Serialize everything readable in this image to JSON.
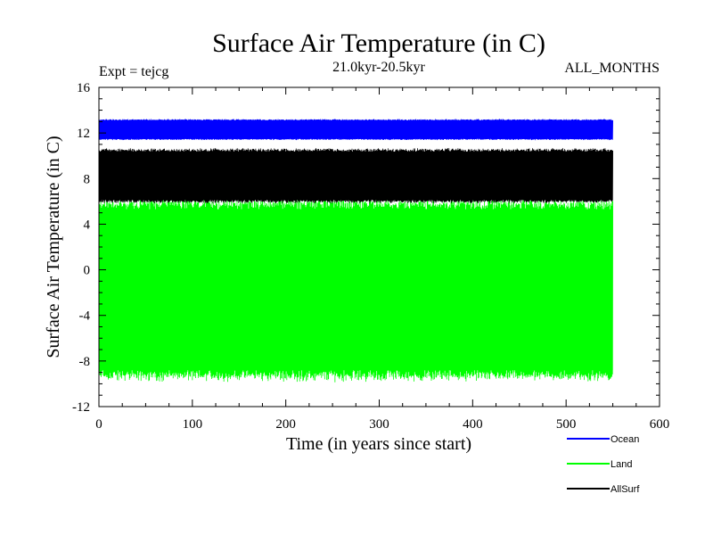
{
  "chart_data": {
    "type": "line",
    "title": "Surface Air Temperature (in C)",
    "subtitle": "21.0kyr-20.5kyr",
    "experiment_label": "Expt = tejcg",
    "months_label": "ALL_MONTHS",
    "xlabel": "Time (in years since start)",
    "ylabel": "Surface Air Temperature (in C)",
    "xlim": [
      0,
      600
    ],
    "ylim": [
      -12,
      16
    ],
    "x_ticks": [
      "0",
      "100",
      "200",
      "300",
      "400",
      "500",
      "600"
    ],
    "y_ticks": [
      "-12",
      "-8",
      "-4",
      "0",
      "4",
      "8",
      "12",
      "16"
    ],
    "x_range_of_data": [
      0,
      550
    ],
    "grid": false,
    "legend_position": "bottom-right",
    "series": [
      {
        "name": "Ocean",
        "color": "#0000ff",
        "low": 11.4,
        "high": 13.2
      },
      {
        "name": "Land",
        "color": "#00ff00",
        "low": -9.6,
        "high": 6.1
      },
      {
        "name": "AllSurf",
        "color": "#000000",
        "low": 5.9,
        "high": 10.6
      }
    ]
  }
}
